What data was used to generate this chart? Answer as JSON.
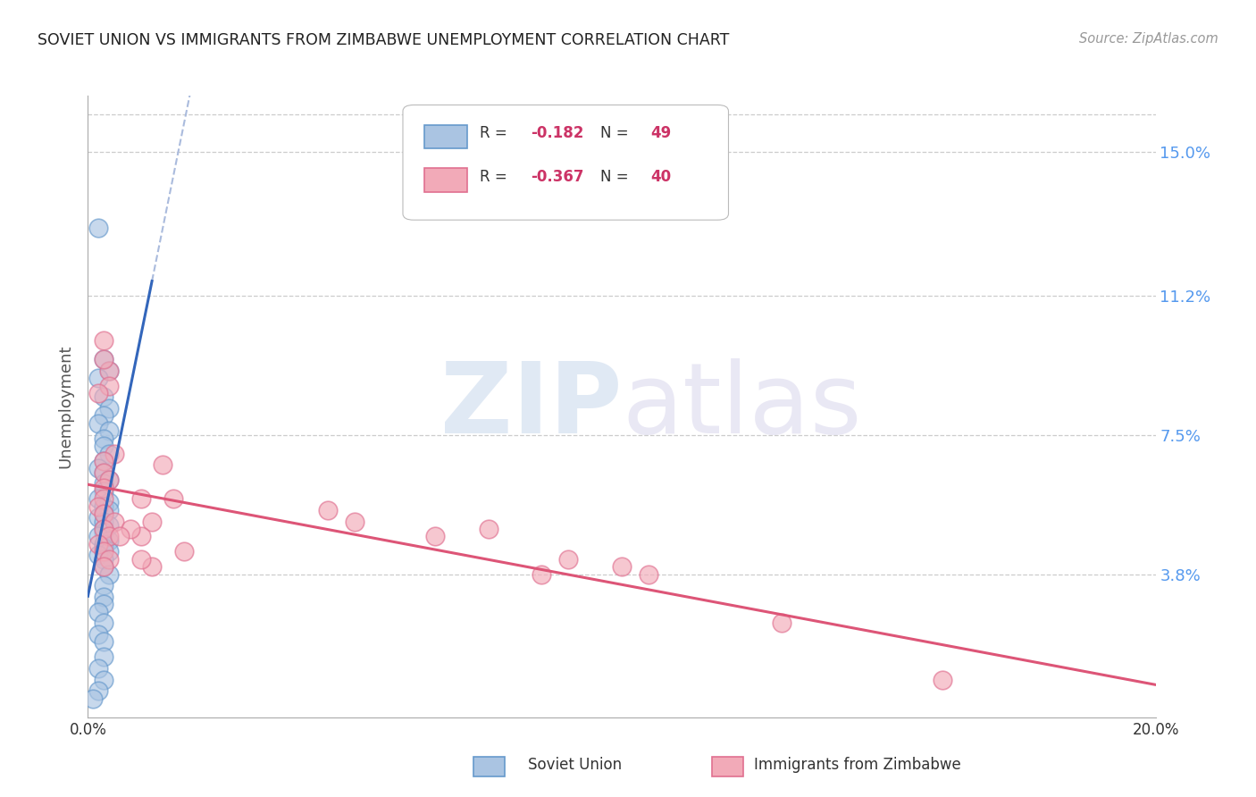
{
  "title": "SOVIET UNION VS IMMIGRANTS FROM ZIMBABWE UNEMPLOYMENT CORRELATION CHART",
  "source": "Source: ZipAtlas.com",
  "ylabel": "Unemployment",
  "ytick_labels": [
    "15.0%",
    "11.2%",
    "7.5%",
    "3.8%"
  ],
  "ytick_values": [
    0.15,
    0.112,
    0.075,
    0.038
  ],
  "xlim": [
    0.0,
    0.2
  ],
  "ylim": [
    0.0,
    0.165
  ],
  "soviet_color": "#aac4e2",
  "zimbabwe_color": "#f2aab8",
  "soviet_edge": "#6699cc",
  "zimbabwe_edge": "#e07090",
  "soviet_x": [
    0.002,
    0.003,
    0.004,
    0.002,
    0.003,
    0.004,
    0.003,
    0.002,
    0.004,
    0.003,
    0.003,
    0.004,
    0.003,
    0.002,
    0.003,
    0.004,
    0.003,
    0.003,
    0.002,
    0.004,
    0.003,
    0.004,
    0.003,
    0.002,
    0.003,
    0.004,
    0.003,
    0.003,
    0.002,
    0.004,
    0.003,
    0.003,
    0.004,
    0.002,
    0.003,
    0.003,
    0.004,
    0.003,
    0.003,
    0.003,
    0.002,
    0.003,
    0.002,
    0.003,
    0.003,
    0.002,
    0.003,
    0.002,
    0.001
  ],
  "soviet_y": [
    0.13,
    0.095,
    0.092,
    0.09,
    0.085,
    0.082,
    0.08,
    0.078,
    0.076,
    0.074,
    0.072,
    0.07,
    0.068,
    0.066,
    0.065,
    0.063,
    0.062,
    0.06,
    0.058,
    0.057,
    0.056,
    0.055,
    0.054,
    0.053,
    0.052,
    0.051,
    0.05,
    0.049,
    0.048,
    0.047,
    0.046,
    0.045,
    0.044,
    0.043,
    0.042,
    0.04,
    0.038,
    0.035,
    0.032,
    0.03,
    0.028,
    0.025,
    0.022,
    0.02,
    0.016,
    0.013,
    0.01,
    0.007,
    0.005
  ],
  "zimbabwe_x": [
    0.003,
    0.004,
    0.003,
    0.004,
    0.002,
    0.005,
    0.003,
    0.003,
    0.004,
    0.003,
    0.003,
    0.002,
    0.003,
    0.005,
    0.003,
    0.004,
    0.002,
    0.003,
    0.004,
    0.003,
    0.014,
    0.01,
    0.016,
    0.012,
    0.01,
    0.008,
    0.018,
    0.012,
    0.006,
    0.01,
    0.065,
    0.09,
    0.1,
    0.16,
    0.105,
    0.075,
    0.05,
    0.045,
    0.13,
    0.085
  ],
  "zimbabwe_y": [
    0.1,
    0.092,
    0.095,
    0.088,
    0.086,
    0.07,
    0.068,
    0.065,
    0.063,
    0.061,
    0.058,
    0.056,
    0.054,
    0.052,
    0.05,
    0.048,
    0.046,
    0.044,
    0.042,
    0.04,
    0.067,
    0.058,
    0.058,
    0.052,
    0.048,
    0.05,
    0.044,
    0.04,
    0.048,
    0.042,
    0.048,
    0.042,
    0.04,
    0.01,
    0.038,
    0.05,
    0.052,
    0.055,
    0.025,
    0.038
  ]
}
